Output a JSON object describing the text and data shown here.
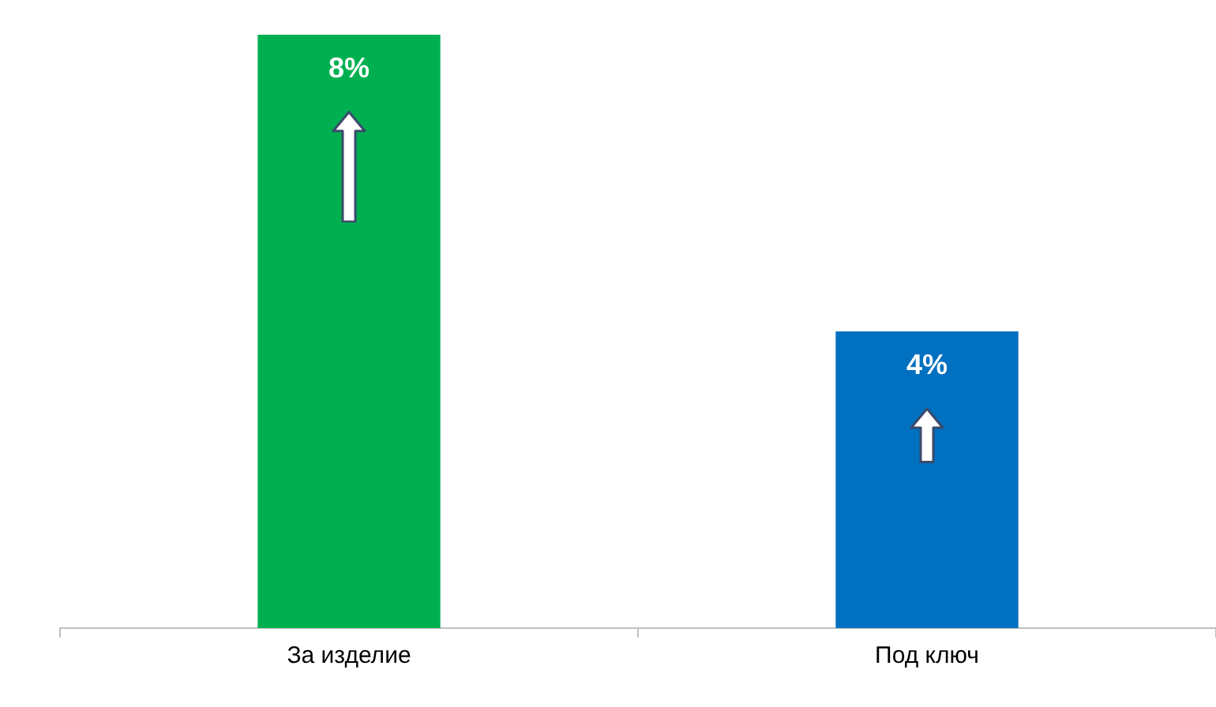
{
  "chart_data": {
    "type": "bar",
    "categories": [
      "За изделие",
      "Под ключ"
    ],
    "values": [
      8,
      4
    ],
    "colors": [
      "#00b050",
      "#0070c0"
    ],
    "value_labels": [
      "8%",
      "4%"
    ],
    "tick_labels": "x",
    "grid": false,
    "legend": false
  }
}
